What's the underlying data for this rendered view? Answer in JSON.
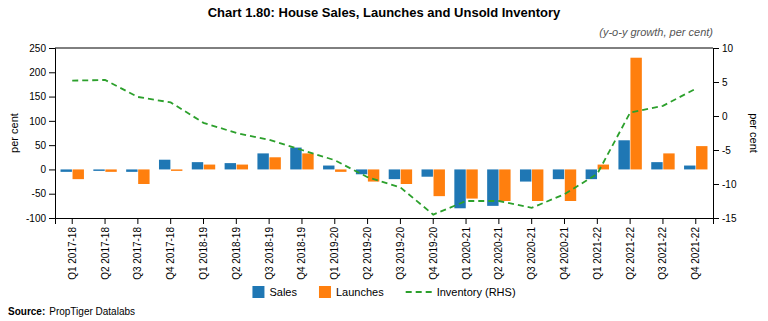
{
  "chart_data": {
    "type": "bar",
    "title": "Chart 1.80: House Sales, Launches and Unsold Inventory",
    "subtitle": "(y-o-y growth, per cent)",
    "annotations": [
      "Source:",
      "PropTiger Datalabs"
    ],
    "y_label": "per cent",
    "y2_label": "per cent",
    "categories": [
      "Q1 2017-18",
      "Q2 2017-18",
      "Q3 2017-18",
      "Q4 2017-18",
      "Q1 2018-19",
      "Q2 2018-19",
      "Q3 2018-19",
      "Q4 2018-19",
      "Q1 2019-20",
      "Q2 2019-20",
      "Q3 2019-20",
      "Q4 2019-20",
      "Q1 2020-21",
      "Q2 2020-21",
      "Q3 2020-21",
      "Q4 2020-21",
      "Q1 2021-22",
      "Q2 2021-22",
      "Q3 2021-22",
      "Q4 2021-22"
    ],
    "series": [
      {
        "name": "Sales",
        "type": "bar",
        "values": [
          -5,
          -3,
          -5,
          20,
          15,
          13,
          33,
          45,
          8,
          -10,
          -20,
          -15,
          -80,
          -75,
          -25,
          -20,
          -20,
          60,
          15,
          8
        ]
      },
      {
        "name": "Launches",
        "type": "bar",
        "values": [
          -20,
          -5,
          -30,
          -3,
          10,
          10,
          25,
          33,
          -5,
          -25,
          -30,
          -55,
          -60,
          -65,
          -65,
          -65,
          10,
          230,
          33,
          48
        ]
      },
      {
        "name": "Inventory (RHS)",
        "type": "line",
        "axis": "y2",
        "line_style": "dashed",
        "values": [
          5.2,
          5.3,
          2.8,
          2.0,
          -1.0,
          -2.5,
          -3.5,
          -5.0,
          -6.5,
          -9.0,
          -10.5,
          -14.5,
          -12.5,
          -12.5,
          -13.5,
          -11.5,
          -8.5,
          0.5,
          1.5,
          4.0
        ]
      }
    ],
    "ylim": [
      -100,
      250
    ],
    "yticks": [
      -100,
      -50,
      0,
      50,
      100,
      150,
      200,
      250
    ],
    "y2lim": [
      -15,
      10
    ],
    "y2ticks": [
      -15,
      -10,
      -5,
      0,
      5,
      10
    ],
    "legend": "bottom",
    "grid": false
  }
}
